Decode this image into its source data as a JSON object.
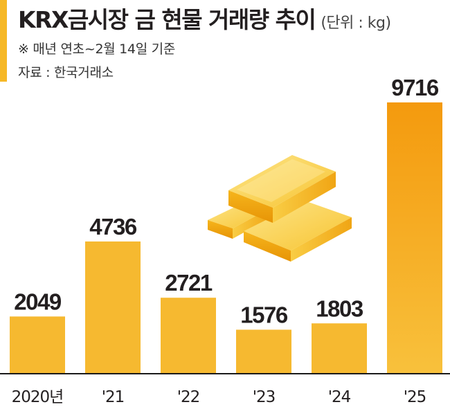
{
  "header": {
    "title": "KRX금시장 금 현물 거래량 추이",
    "unit": "(단위 : kg)",
    "note": "※ 매년 연초~2월 14일 기준",
    "source": "자료 : 한국거래소"
  },
  "colors": {
    "accent": "#f6b827",
    "bar": "#f6b930",
    "bar_highlight_top": "#f49a0e",
    "bar_highlight_bottom": "#f8c13c",
    "axis": "#1a1a1a"
  },
  "illustration": {
    "icon": "gold-bars-icon"
  },
  "chart_data": {
    "type": "bar",
    "title": "KRX금시장 금 현물 거래량 추이",
    "ylabel": "",
    "xlabel": "",
    "categories": [
      "2020년",
      "'21",
      "'22",
      "'23",
      "'24",
      "'25"
    ],
    "values": [
      2049,
      4736,
      2721,
      1576,
      1803,
      9716
    ],
    "value_labels": [
      "2049",
      "4736",
      "2721",
      "1576",
      "1803",
      "9716"
    ],
    "ylim": [
      0,
      9716
    ],
    "grid": false,
    "legend": "none",
    "highlight_index": 5
  }
}
